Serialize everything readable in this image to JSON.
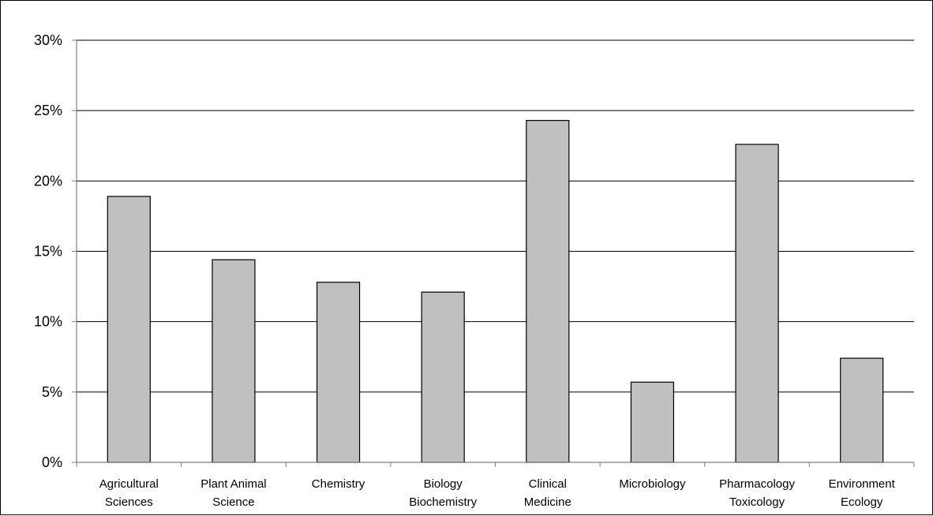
{
  "chart_data": {
    "type": "bar",
    "categories": [
      [
        "Agricultural",
        "Sciences"
      ],
      [
        "Plant Animal",
        "Science"
      ],
      [
        "Chemistry"
      ],
      [
        "Biology",
        "Biochemistry"
      ],
      [
        "Clinical",
        "Medicine"
      ],
      [
        "Microbiology"
      ],
      [
        "Pharmacology",
        "Toxicology"
      ],
      [
        "Environment",
        "Ecology"
      ]
    ],
    "values": [
      18.9,
      14.4,
      12.8,
      12.1,
      24.3,
      5.7,
      22.6,
      7.4
    ],
    "ylim": [
      0,
      30
    ],
    "yticks": [
      0,
      5,
      10,
      15,
      20,
      25,
      30
    ],
    "ytick_labels": [
      "0%",
      "5%",
      "10%",
      "15%",
      "20%",
      "25%",
      "30%"
    ],
    "grid": true,
    "colors": {
      "bar_fill": "#c0c0c0",
      "bar_stroke": "#000000",
      "grid": "#000000",
      "axis": "#808080"
    }
  }
}
